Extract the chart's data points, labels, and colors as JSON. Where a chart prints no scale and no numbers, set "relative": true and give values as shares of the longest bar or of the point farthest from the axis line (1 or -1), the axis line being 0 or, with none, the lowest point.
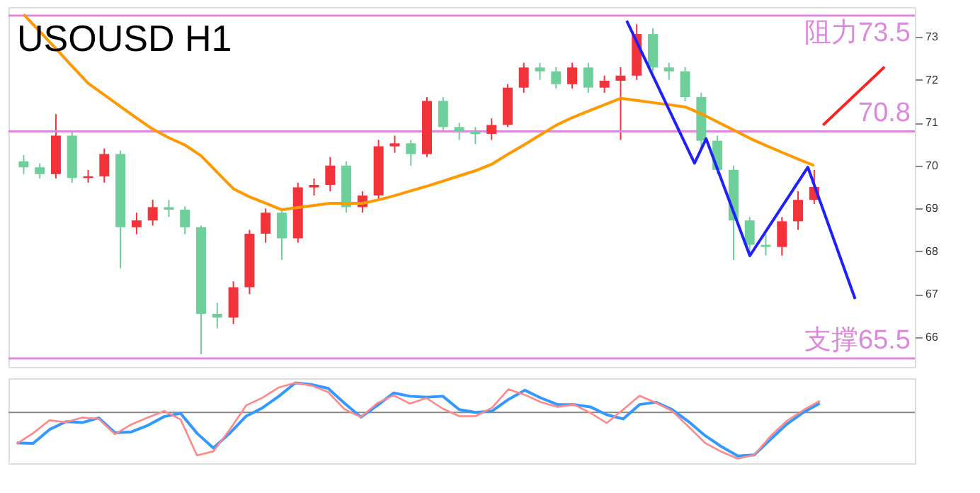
{
  "chart_data": [
    {
      "type": "candlestick",
      "title": "USOUSD H1",
      "categories": [
        null,
        null,
        null,
        null,
        null,
        null,
        null,
        null,
        null,
        null,
        null,
        null,
        null,
        null,
        null,
        null,
        null,
        null,
        null,
        null,
        null,
        null,
        null,
        null,
        null,
        null,
        null,
        null,
        null,
        null,
        null,
        null,
        null,
        null,
        null,
        null,
        null,
        null,
        null,
        null,
        null,
        null,
        null,
        null,
        null,
        null,
        null,
        null,
        null,
        null
      ],
      "ohlc": [
        [
          70.1,
          70.25,
          69.8,
          69.96
        ],
        [
          69.96,
          70.05,
          69.7,
          69.8
        ],
        [
          69.8,
          71.2,
          69.7,
          70.7
        ],
        [
          70.7,
          70.8,
          69.6,
          69.71
        ],
        [
          69.71,
          69.9,
          69.6,
          69.75
        ],
        [
          69.75,
          70.4,
          69.6,
          70.27
        ],
        [
          70.27,
          70.35,
          67.6,
          68.56
        ],
        [
          68.56,
          68.9,
          68.4,
          68.72
        ],
        [
          68.72,
          69.2,
          68.6,
          69.03
        ],
        [
          69.03,
          69.2,
          68.8,
          68.97
        ],
        [
          68.97,
          69.05,
          68.4,
          68.56
        ],
        [
          68.56,
          68.6,
          65.6,
          66.54
        ],
        [
          66.54,
          66.8,
          66.2,
          66.45
        ],
        [
          66.45,
          67.3,
          66.3,
          67.16
        ],
        [
          67.16,
          68.5,
          67.0,
          68.41
        ],
        [
          68.41,
          69.0,
          68.2,
          68.9
        ],
        [
          68.9,
          69.0,
          67.8,
          68.3
        ],
        [
          68.3,
          69.6,
          68.2,
          69.49
        ],
        [
          69.49,
          69.7,
          69.3,
          69.55
        ],
        [
          69.55,
          70.2,
          69.4,
          70.0
        ],
        [
          70.0,
          70.1,
          68.9,
          69.03
        ],
        [
          69.03,
          69.4,
          68.9,
          69.3
        ],
        [
          69.3,
          70.6,
          69.2,
          70.45
        ],
        [
          70.45,
          70.7,
          70.3,
          70.52
        ],
        [
          70.52,
          70.6,
          70.0,
          70.27
        ],
        [
          70.27,
          71.6,
          70.2,
          71.51
        ],
        [
          71.51,
          71.6,
          70.8,
          70.9
        ],
        [
          70.9,
          71.0,
          70.6,
          70.8
        ],
        [
          70.8,
          70.9,
          70.5,
          70.74
        ],
        [
          70.74,
          71.1,
          70.6,
          70.95
        ],
        [
          70.95,
          71.9,
          70.9,
          71.82
        ],
        [
          71.82,
          72.4,
          71.7,
          72.29
        ],
        [
          72.29,
          72.4,
          72.0,
          72.2
        ],
        [
          72.2,
          72.3,
          71.8,
          71.9
        ],
        [
          71.9,
          72.4,
          71.8,
          72.29
        ],
        [
          72.29,
          72.4,
          71.7,
          71.82
        ],
        [
          71.82,
          72.1,
          71.7,
          71.98
        ],
        [
          71.98,
          72.3,
          70.6,
          72.1
        ],
        [
          72.1,
          73.3,
          72.0,
          73.07
        ],
        [
          73.07,
          73.2,
          72.2,
          72.29
        ],
        [
          72.29,
          72.4,
          72.0,
          72.2
        ],
        [
          72.2,
          72.3,
          71.5,
          71.6
        ],
        [
          71.6,
          71.7,
          70.4,
          70.58
        ],
        [
          70.58,
          70.7,
          69.8,
          69.9
        ],
        [
          69.9,
          70.0,
          67.8,
          68.72
        ],
        [
          68.72,
          68.8,
          67.9,
          68.15
        ],
        [
          68.15,
          68.4,
          67.9,
          68.1
        ],
        [
          68.1,
          68.8,
          67.9,
          68.7
        ],
        [
          68.7,
          69.4,
          68.5,
          69.2
        ],
        [
          69.2,
          69.9,
          69.1,
          69.5
        ]
      ],
      "colors": [
        "#6fcf9b",
        "#6fcf9b",
        "#f2333a",
        "#6fcf9b",
        "#f2333a",
        "#f2333a",
        "#6fcf9b",
        "#f2333a",
        "#f2333a",
        "#6fcf9b",
        "#6fcf9b",
        "#6fcf9b",
        "#6fcf9b",
        "#f2333a",
        "#f2333a",
        "#f2333a",
        "#6fcf9b",
        "#f2333a",
        "#f2333a",
        "#f2333a",
        "#6fcf9b",
        "#f2333a",
        "#f2333a",
        "#f2333a",
        "#6fcf9b",
        "#f2333a",
        "#6fcf9b",
        "#6fcf9b",
        "#6fcf9b",
        "#f2333a",
        "#f2333a",
        "#f2333a",
        "#6fcf9b",
        "#6fcf9b",
        "#f2333a",
        "#6fcf9b",
        "#f2333a",
        "#f2333a",
        "#f2333a",
        "#6fcf9b",
        "#6fcf9b",
        "#6fcf9b",
        "#6fcf9b",
        "#6fcf9b",
        "#6fcf9b",
        "#6fcf9b",
        "#6fcf9b",
        "#f2333a",
        "#f2333a",
        "#f2333a"
      ],
      "ylim": [
        65.3,
        73.7
      ],
      "yticks": [
        66,
        67,
        68,
        69,
        70,
        71,
        72,
        73
      ],
      "tick_labels": "y",
      "ref_lines": [
        {
          "axis": "y",
          "value": 73.5,
          "label": "阻力73.5",
          "color": "#dd88dd"
        },
        {
          "axis": "y",
          "value": 70.8,
          "label": "70.8",
          "color": "#dd88dd"
        },
        {
          "axis": "y",
          "value": 65.5,
          "label": "支撑65.5",
          "color": "#dd88dd"
        }
      ],
      "series": [
        {
          "type": "line",
          "color": "#ff9900",
          "values": [
            73.53,
            73.13,
            72.73,
            72.32,
            71.92,
            71.65,
            71.38,
            71.11,
            70.85,
            70.65,
            70.48,
            70.23,
            69.84,
            69.46,
            69.27,
            69.12,
            68.97,
            69.02,
            69.07,
            69.12,
            69.12,
            69.12,
            69.2,
            69.3,
            69.41,
            69.52,
            69.64,
            69.76,
            69.88,
            70.03,
            70.26,
            70.48,
            70.71,
            70.94,
            71.12,
            71.27,
            71.42,
            71.57,
            71.52,
            71.47,
            71.42,
            71.37,
            71.21,
            71.02,
            70.83,
            70.64,
            70.47,
            70.31,
            70.15,
            70.0
          ]
        }
      ]
    },
    {
      "type": "line",
      "relative": true,
      "categories": [
        null,
        null,
        null,
        null,
        null,
        null,
        null,
        null,
        null,
        null,
        null,
        null,
        null,
        null,
        null,
        null,
        null,
        null,
        null,
        null,
        null,
        null,
        null,
        null,
        null,
        null,
        null,
        null,
        null,
        null,
        null,
        null,
        null,
        null,
        null,
        null,
        null,
        null,
        null,
        null,
        null,
        null,
        null,
        null,
        null,
        null,
        null,
        null,
        null,
        null
      ],
      "series": [
        {
          "color": "#3399ff",
          "values": [
            -0.66,
            -0.67,
            -0.37,
            -0.2,
            -0.22,
            -0.12,
            -0.44,
            -0.42,
            -0.28,
            -0.09,
            -0.02,
            -0.45,
            -0.77,
            -0.45,
            -0.08,
            0.1,
            0.35,
            0.64,
            0.6,
            0.52,
            0.2,
            -0.1,
            0.15,
            0.42,
            0.35,
            0.33,
            0.35,
            0.06,
            0,
            0.03,
            0.28,
            0.48,
            0.31,
            0.17,
            0.17,
            0.12,
            -0.05,
            -0.14,
            0.17,
            0.22,
            0.06,
            -0.2,
            -0.5,
            -0.74,
            -0.94,
            -0.92,
            -0.58,
            -0.25,
            0.0,
            0.2
          ]
        },
        {
          "color": "#ff8888",
          "values": [
            -0.68,
            -0.45,
            -0.17,
            -0.21,
            -0.11,
            -0.14,
            -0.47,
            -0.26,
            -0.11,
            0.03,
            -0.15,
            -0.93,
            -0.84,
            -0.37,
            0.15,
            0.32,
            0.54,
            0.64,
            0.58,
            0.44,
            0.07,
            -0.1,
            0.2,
            0.37,
            0.19,
            0.31,
            0.08,
            -0.08,
            -0.08,
            0.1,
            0.5,
            0.38,
            0.22,
            0.12,
            0.17,
            -0.01,
            -0.23,
            0.06,
            0.36,
            0.21,
            0.03,
            -0.31,
            -0.66,
            -0.85,
            -1,
            -0.92,
            -0.51,
            -0.18,
            0.05,
            0.25
          ]
        }
      ]
    }
  ]
}
